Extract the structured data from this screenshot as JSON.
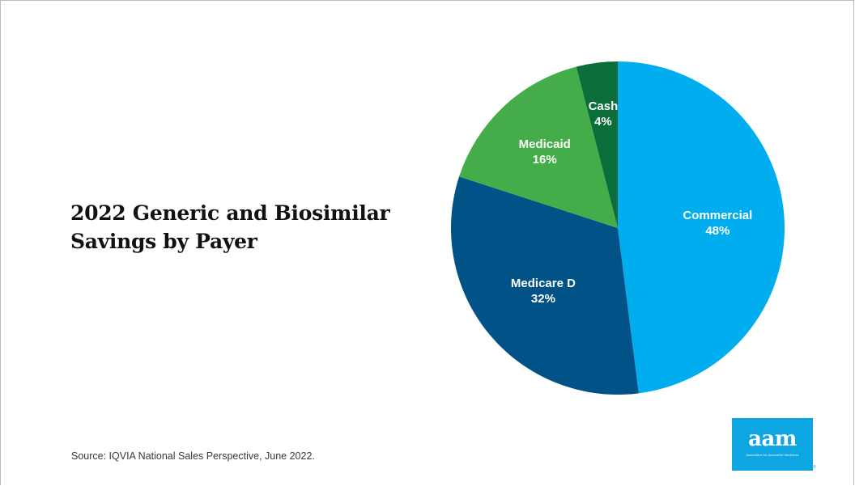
{
  "title_lines": [
    "2022 Generic and Biosimilar",
    "Savings by Payer"
  ],
  "source": "Source: IQVIA National Sales Perspective, June 2022.",
  "logo": {
    "wordmark": "aam",
    "tagline": "Association for Accessible Medicines",
    "registered": "®",
    "color": "#0ea5e3"
  },
  "chart_data": {
    "type": "pie",
    "title": "2022 Generic and Biosimilar Savings by Payer",
    "start": "12 o'clock",
    "direction": "clockwise",
    "slices": [
      {
        "label": "Commercial",
        "value": 48,
        "value_label": "48%",
        "color": "#00adef"
      },
      {
        "label": "Medicare D",
        "value": 32,
        "value_label": "32%",
        "color": "#005287"
      },
      {
        "label": "Medicaid",
        "value": 16,
        "value_label": "16%",
        "color": "#44ad4a"
      },
      {
        "label": "Cash",
        "value": 4,
        "value_label": "4%",
        "color": "#0b6e3a"
      }
    ]
  }
}
